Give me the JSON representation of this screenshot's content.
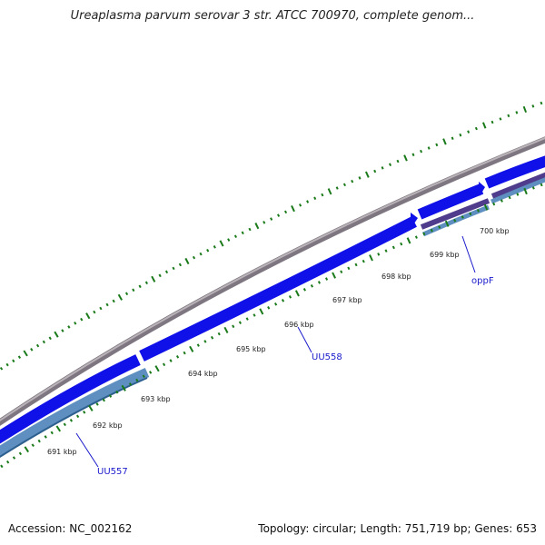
{
  "title": "Ureaplasma parvum serovar 3 str. ATCC 700970, complete genom...",
  "footer": {
    "accession": "Accession: NC_002162",
    "stats": "Topology: circular; Length: 751,719 bp; Genes: 653"
  },
  "ticks": [
    "691 kbp",
    "692 kbp",
    "693 kbp",
    "694 kbp",
    "695 kbp",
    "696 kbp",
    "697 kbp",
    "698 kbp",
    "699 kbp",
    "700 kbp"
  ],
  "genes": [
    {
      "label": "UU557",
      "color": "#5f8fc0"
    },
    {
      "label": "UU558",
      "color": "#1010e8"
    },
    {
      "label": "oppF",
      "color": "#5f8fc0"
    }
  ],
  "colors": {
    "backbone": "#8a8088",
    "forward_cds": "#1010e8",
    "reverse_cds": "#5f8fc0",
    "purple_cds": "#503c8c",
    "ticks": "#1a7a1a"
  }
}
